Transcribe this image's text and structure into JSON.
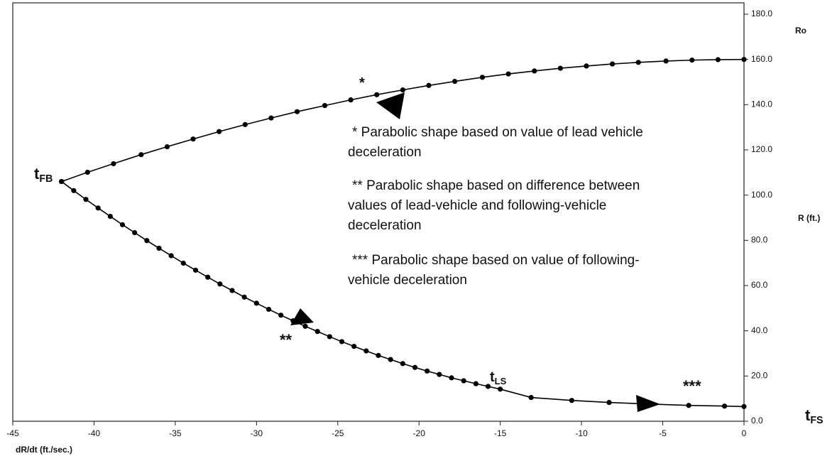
{
  "chart_data": {
    "type": "line",
    "xlabel": "dR/dt (ft./sec.)",
    "ylabel": "R (ft.)",
    "xlim": [
      -45,
      0
    ],
    "xticks": [
      -45,
      -40,
      -35,
      -30,
      -25,
      -20,
      -15,
      -10,
      -5,
      0
    ],
    "ylim": [
      0,
      180
    ],
    "yticks": [
      {
        "value": 0,
        "label": "0.0"
      },
      {
        "value": 20,
        "label": "20.0"
      },
      {
        "value": 40,
        "label": "40.0"
      },
      {
        "value": 60,
        "label": "60.0"
      },
      {
        "value": 80,
        "label": "80.0"
      },
      {
        "value": 100,
        "label": "100.0"
      },
      {
        "value": 120,
        "label": "120.0"
      },
      {
        "value": 140,
        "label": "140.0"
      },
      {
        "value": 160,
        "label": "160.0"
      },
      {
        "value": 180,
        "label": "180.0"
      }
    ],
    "y_axis_side": "right",
    "grid": false,
    "series": [
      {
        "color": "#000000",
        "x": [
          -42,
          -40.4,
          -38.8,
          -37.1,
          -35.5,
          -33.9,
          -32.3,
          -30.7,
          -29.1,
          -27.5,
          -25.8,
          -24.2,
          -22.6,
          -21,
          -19.4,
          -17.8,
          -16.1,
          -14.5,
          -12.9,
          -11.3,
          -9.7,
          -8.1,
          -6.5,
          -4.8,
          -3.2,
          -1.6,
          0
        ],
        "values": [
          106,
          110.1,
          113.9,
          117.9,
          121.4,
          124.8,
          128.1,
          131.2,
          134.1,
          136.9,
          139.6,
          142.1,
          144.4,
          146.5,
          148.5,
          150.3,
          152.1,
          153.6,
          154.9,
          156.1,
          157.1,
          158.0,
          158.7,
          159.3,
          159.7,
          159.9,
          160
        ]
      },
      {
        "color": "#000000",
        "x": [
          -42,
          -41.25,
          -40.5,
          -39.75,
          -39,
          -38.25,
          -37.5,
          -36.75,
          -36,
          -35.25,
          -34.5,
          -33.75,
          -33,
          -32.25,
          -31.5,
          -30.75,
          -30,
          -29.25,
          -28.5,
          -27.75,
          -27,
          -26.25,
          -25.5,
          -24.75,
          -24,
          -23.25,
          -22.5,
          -21.75,
          -21,
          -20.25,
          -19.5,
          -18.75,
          -18,
          -17.25,
          -16.5,
          -15.75,
          -15,
          -13.1,
          -10.6,
          -8.3,
          -5.8,
          -3.4,
          -1.2,
          0
        ],
        "values": [
          106.0,
          102.0,
          98.1,
          94.3,
          90.6,
          86.9,
          83.4,
          79.9,
          76.5,
          73.2,
          69.9,
          66.8,
          63.7,
          60.7,
          57.8,
          54.9,
          52.2,
          49.5,
          46.9,
          44.4,
          42.0,
          39.7,
          37.4,
          35.2,
          33.1,
          31.1,
          29.1,
          27.3,
          25.5,
          23.8,
          22.2,
          20.7,
          19.2,
          17.9,
          16.6,
          15.4,
          14.2,
          10.5,
          9.2,
          8.3,
          7.6,
          7.0,
          6.7,
          6.5
        ]
      }
    ],
    "annotations": [
      {
        "text": "Ro"
      },
      {
        "text": "t",
        "sub": "FB"
      },
      {
        "text": "t",
        "sub": "LS"
      },
      {
        "text": "t",
        "sub": "FS"
      },
      {
        "text": "*"
      },
      {
        "text": "**"
      },
      {
        "text": "***"
      }
    ],
    "notes": [
      {
        "lines": [
          "* Parabolic shape based on value of lead vehicle",
          "deceleration"
        ]
      },
      {
        "lines": [
          "** Parabolic shape based on difference between",
          "values of lead-vehicle and following-vehicle",
          "deceleration"
        ]
      },
      {
        "lines": [
          "*** Parabolic shape based on value of following-",
          "vehicle deceleration"
        ]
      }
    ]
  }
}
